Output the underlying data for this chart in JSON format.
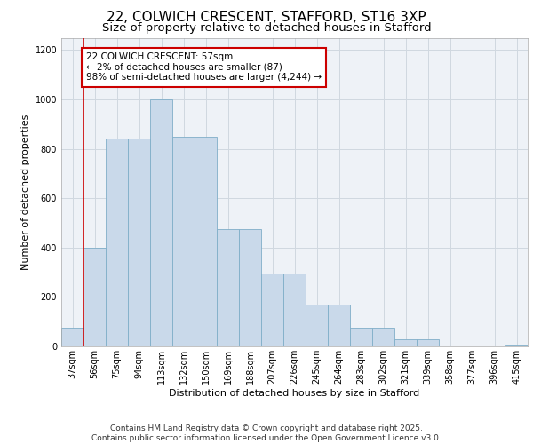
{
  "title_line1": "22, COLWICH CRESCENT, STAFFORD, ST16 3XP",
  "title_line2": "Size of property relative to detached houses in Stafford",
  "xlabel": "Distribution of detached houses by size in Stafford",
  "ylabel": "Number of detached properties",
  "categories": [
    "37sqm",
    "56sqm",
    "75sqm",
    "94sqm",
    "113sqm",
    "132sqm",
    "150sqm",
    "169sqm",
    "188sqm",
    "207sqm",
    "226sqm",
    "245sqm",
    "264sqm",
    "283sqm",
    "302sqm",
    "321sqm",
    "339sqm",
    "358sqm",
    "377sqm",
    "396sqm",
    "415sqm"
  ],
  "values": [
    75,
    400,
    840,
    840,
    1000,
    850,
    850,
    475,
    475,
    295,
    295,
    170,
    170,
    75,
    75,
    30,
    30,
    0,
    0,
    0,
    5
  ],
  "bar_color": "#c9d9ea",
  "bar_edge_color": "#7faec8",
  "vline_color": "#cc0000",
  "annotation_text": "22 COLWICH CRESCENT: 57sqm\n← 2% of detached houses are smaller (87)\n98% of semi-detached houses are larger (4,244) →",
  "annotation_box_color": "#ffffff",
  "annotation_box_edge": "#cc0000",
  "ylim": [
    0,
    1250
  ],
  "yticks": [
    0,
    200,
    400,
    600,
    800,
    1000,
    1200
  ],
  "grid_color": "#d0d8e0",
  "background_color": "#eef2f7",
  "footer_text": "Contains HM Land Registry data © Crown copyright and database right 2025.\nContains public sector information licensed under the Open Government Licence v3.0.",
  "title_fontsize": 11,
  "subtitle_fontsize": 9.5,
  "axis_label_fontsize": 8,
  "tick_fontsize": 7,
  "annotation_fontsize": 7.5,
  "footer_fontsize": 6.5
}
